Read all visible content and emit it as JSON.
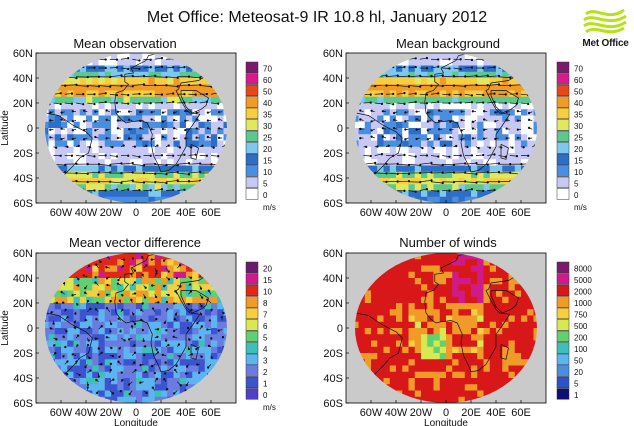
{
  "page": {
    "title": "Met Office: Meteosat-9 IR 10.8 hl, January 2012",
    "logo_text": "Met Office"
  },
  "chart_data": [
    {
      "type": "heatmap",
      "title": "Mean observation",
      "xlabel": "",
      "ylabel": "Latitude",
      "x_ticks": [
        "60W",
        "40W",
        "20W",
        "0",
        "20E",
        "40E",
        "60E"
      ],
      "y_ticks": [
        "60N",
        "40N",
        "20N",
        "0",
        "20S",
        "40S",
        "60S"
      ],
      "xlim": [
        -80,
        80
      ],
      "ylim": [
        -60,
        60
      ],
      "field": "mean_wind_speed",
      "vectors": true,
      "colorbar": {
        "unit": "m/s",
        "levels": [
          "0",
          "5",
          "10",
          "15",
          "20",
          "25",
          "30",
          "35",
          "40",
          "50",
          "60",
          "70"
        ],
        "colors": [
          "#ffffff",
          "#c8c8f4",
          "#4a8ee0",
          "#2c6ec8",
          "#7ec8f0",
          "#5cc890",
          "#e0e860",
          "#f4d040",
          "#f09a28",
          "#e84818",
          "#d81a8c",
          "#7a1a6a"
        ]
      }
    },
    {
      "type": "heatmap",
      "title": "Mean background",
      "xlabel": "",
      "ylabel": "",
      "x_ticks": [
        "60W",
        "40W",
        "20W",
        "0",
        "20E",
        "40E",
        "60E"
      ],
      "y_ticks": [
        "60N",
        "40N",
        "20N",
        "0",
        "20S",
        "40S",
        "60S"
      ],
      "xlim": [
        -80,
        80
      ],
      "ylim": [
        -60,
        60
      ],
      "field": "mean_wind_speed",
      "vectors": true,
      "colorbar": {
        "unit": "m/s",
        "levels": [
          "0",
          "5",
          "10",
          "15",
          "20",
          "25",
          "30",
          "35",
          "40",
          "50",
          "60",
          "70"
        ],
        "colors": [
          "#ffffff",
          "#c8c8f4",
          "#4a8ee0",
          "#2c6ec8",
          "#7ec8f0",
          "#5cc890",
          "#e0e860",
          "#f4d040",
          "#f09a28",
          "#e84818",
          "#d81a8c",
          "#7a1a6a"
        ]
      }
    },
    {
      "type": "heatmap",
      "title": "Mean vector difference",
      "xlabel": "Longitude",
      "ylabel": "Latitude",
      "x_ticks": [
        "60W",
        "40W",
        "20W",
        "0",
        "20E",
        "40E",
        "60E"
      ],
      "y_ticks": [
        "60N",
        "40N",
        "20N",
        "0",
        "20S",
        "40S",
        "60S"
      ],
      "xlim": [
        -80,
        80
      ],
      "ylim": [
        -60,
        60
      ],
      "field": "mean_vector_difference",
      "vectors": true,
      "colorbar": {
        "unit": "m/s",
        "levels": [
          "0",
          "1",
          "2",
          "3",
          "4",
          "5",
          "6",
          "7",
          "8",
          "10",
          "15",
          "20"
        ],
        "colors": [
          "#5040c8",
          "#3c54d0",
          "#6a7ce0",
          "#5cb4f0",
          "#3cc0b8",
          "#60d070",
          "#d8e850",
          "#f4d040",
          "#f09a28",
          "#e02818",
          "#d01a8c",
          "#6a1a6a"
        ]
      }
    },
    {
      "type": "heatmap",
      "title": "Number of winds",
      "xlabel": "Longitude",
      "ylabel": "",
      "x_ticks": [
        "60W",
        "40W",
        "20W",
        "0",
        "20E",
        "40E",
        "60E"
      ],
      "y_ticks": [
        "60N",
        "40N",
        "20N",
        "0",
        "20S",
        "40S",
        "60S"
      ],
      "xlim": [
        -80,
        80
      ],
      "ylim": [
        -60,
        60
      ],
      "field": "number_of_winds",
      "vectors": false,
      "colorbar": {
        "unit": "",
        "levels": [
          "1",
          "5",
          "20",
          "50",
          "100",
          "200",
          "500",
          "750",
          "1000",
          "2000",
          "5000",
          "8000"
        ],
        "colors": [
          "#101070",
          "#2c54c8",
          "#4a8ee0",
          "#5cb4f0",
          "#3cc0b8",
          "#60d070",
          "#d8e850",
          "#f4d040",
          "#f09a28",
          "#d81818",
          "#d01a8c",
          "#7a1a6a"
        ]
      }
    }
  ]
}
